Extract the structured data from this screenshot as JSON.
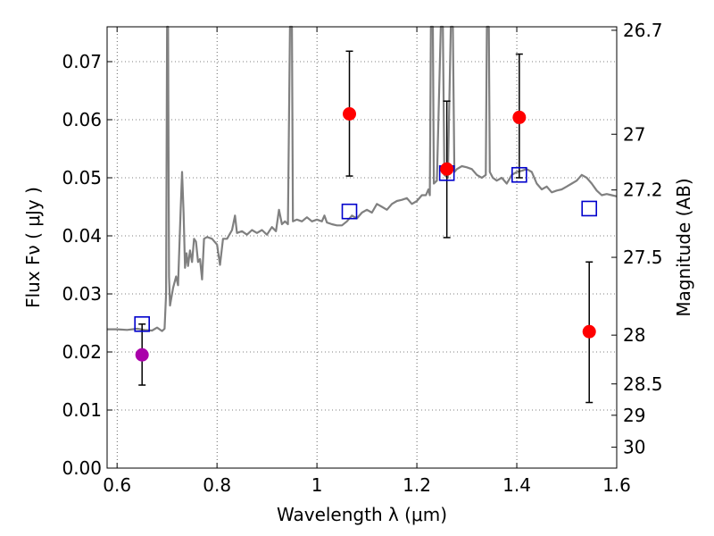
{
  "chart_data": {
    "type": "scatter",
    "xlabel": "Wavelength  λ (μm)",
    "ylabel": "Flux  Fν ( μJy )",
    "ylabel_right": "Magnitude (AB)",
    "xlim": [
      0.58,
      1.6
    ],
    "ylim": [
      0.0,
      0.076
    ],
    "grid": true,
    "x_ticks": [
      0.6,
      0.8,
      1.0,
      1.2,
      1.4,
      1.6
    ],
    "x_tick_labels": [
      "0.6",
      "0.8",
      "1",
      "1.2",
      "1.4",
      "1.6"
    ],
    "y_ticks": [
      0.0,
      0.01,
      0.02,
      0.03,
      0.04,
      0.05,
      0.06,
      0.07
    ],
    "y_tick_labels": [
      "0.00",
      "0.01",
      "0.02",
      "0.03",
      "0.04",
      "0.05",
      "0.06",
      "0.07"
    ],
    "right_ticks": [
      {
        "label": "26.7",
        "flux": 0.0754
      },
      {
        "label": "27",
        "flux": 0.0575
      },
      {
        "label": "27.2",
        "flux": 0.0479
      },
      {
        "label": "27.5",
        "flux": 0.0363
      },
      {
        "label": "28",
        "flux": 0.0229
      },
      {
        "label": "28.5",
        "flux": 0.0145
      },
      {
        "label": "29",
        "flux": 0.0091
      },
      {
        "label": "30",
        "flux": 0.0036
      }
    ],
    "series": [
      {
        "type": "line",
        "color": "#808080",
        "points": [
          [
            0.58,
            0.0239
          ],
          [
            0.6,
            0.0239
          ],
          [
            0.62,
            0.0238
          ],
          [
            0.64,
            0.024
          ],
          [
            0.655,
            0.0238
          ],
          [
            0.67,
            0.0237
          ],
          [
            0.68,
            0.0242
          ],
          [
            0.69,
            0.0236
          ],
          [
            0.695,
            0.024
          ],
          [
            0.698,
            0.03
          ],
          [
            0.7,
            0.076
          ],
          [
            0.702,
            0.076
          ],
          [
            0.704,
            0.033
          ],
          [
            0.706,
            0.028
          ],
          [
            0.712,
            0.031
          ],
          [
            0.718,
            0.033
          ],
          [
            0.722,
            0.0315
          ],
          [
            0.727,
            0.044
          ],
          [
            0.73,
            0.051
          ],
          [
            0.733,
            0.044
          ],
          [
            0.736,
            0.0345
          ],
          [
            0.739,
            0.037
          ],
          [
            0.742,
            0.0348
          ],
          [
            0.746,
            0.0375
          ],
          [
            0.75,
            0.0355
          ],
          [
            0.754,
            0.0395
          ],
          [
            0.758,
            0.039
          ],
          [
            0.762,
            0.0355
          ],
          [
            0.766,
            0.036
          ],
          [
            0.77,
            0.0325
          ],
          [
            0.774,
            0.0395
          ],
          [
            0.78,
            0.0398
          ],
          [
            0.79,
            0.0395
          ],
          [
            0.8,
            0.0385
          ],
          [
            0.806,
            0.035
          ],
          [
            0.812,
            0.0395
          ],
          [
            0.82,
            0.0395
          ],
          [
            0.83,
            0.041
          ],
          [
            0.836,
            0.0435
          ],
          [
            0.84,
            0.0405
          ],
          [
            0.85,
            0.0408
          ],
          [
            0.86,
            0.0402
          ],
          [
            0.87,
            0.041
          ],
          [
            0.88,
            0.0405
          ],
          [
            0.89,
            0.041
          ],
          [
            0.9,
            0.0402
          ],
          [
            0.91,
            0.0415
          ],
          [
            0.918,
            0.0408
          ],
          [
            0.924,
            0.0445
          ],
          [
            0.93,
            0.042
          ],
          [
            0.936,
            0.0425
          ],
          [
            0.942,
            0.042
          ],
          [
            0.946,
            0.076
          ],
          [
            0.95,
            0.076
          ],
          [
            0.952,
            0.0425
          ],
          [
            0.96,
            0.0428
          ],
          [
            0.97,
            0.0425
          ],
          [
            0.98,
            0.0432
          ],
          [
            0.99,
            0.0425
          ],
          [
            1.0,
            0.0428
          ],
          [
            1.01,
            0.0425
          ],
          [
            1.015,
            0.0435
          ],
          [
            1.02,
            0.0423
          ],
          [
            1.03,
            0.042
          ],
          [
            1.04,
            0.0418
          ],
          [
            1.05,
            0.0418
          ],
          [
            1.06,
            0.0425
          ],
          [
            1.07,
            0.0435
          ],
          [
            1.08,
            0.043
          ],
          [
            1.09,
            0.044
          ],
          [
            1.1,
            0.0445
          ],
          [
            1.11,
            0.044
          ],
          [
            1.12,
            0.0455
          ],
          [
            1.13,
            0.045
          ],
          [
            1.14,
            0.0445
          ],
          [
            1.15,
            0.0455
          ],
          [
            1.16,
            0.046
          ],
          [
            1.17,
            0.0462
          ],
          [
            1.18,
            0.0465
          ],
          [
            1.19,
            0.0455
          ],
          [
            1.2,
            0.046
          ],
          [
            1.21,
            0.047
          ],
          [
            1.218,
            0.047
          ],
          [
            1.223,
            0.048
          ],
          [
            1.226,
            0.047
          ],
          [
            1.228,
            0.076
          ],
          [
            1.232,
            0.076
          ],
          [
            1.234,
            0.049
          ],
          [
            1.24,
            0.0495
          ],
          [
            1.248,
            0.076
          ],
          [
            1.252,
            0.076
          ],
          [
            1.255,
            0.0505
          ],
          [
            1.262,
            0.05
          ],
          [
            1.268,
            0.076
          ],
          [
            1.272,
            0.076
          ],
          [
            1.275,
            0.051
          ],
          [
            1.28,
            0.0515
          ],
          [
            1.29,
            0.052
          ],
          [
            1.3,
            0.0518
          ],
          [
            1.31,
            0.0515
          ],
          [
            1.32,
            0.0505
          ],
          [
            1.33,
            0.05
          ],
          [
            1.338,
            0.0505
          ],
          [
            1.34,
            0.076
          ],
          [
            1.344,
            0.076
          ],
          [
            1.346,
            0.051
          ],
          [
            1.352,
            0.05
          ],
          [
            1.36,
            0.0495
          ],
          [
            1.37,
            0.05
          ],
          [
            1.38,
            0.049
          ],
          [
            1.39,
            0.0505
          ],
          [
            1.4,
            0.051
          ],
          [
            1.41,
            0.0512
          ],
          [
            1.42,
            0.0515
          ],
          [
            1.43,
            0.051
          ],
          [
            1.44,
            0.049
          ],
          [
            1.45,
            0.048
          ],
          [
            1.46,
            0.0485
          ],
          [
            1.47,
            0.0475
          ],
          [
            1.48,
            0.0478
          ],
          [
            1.49,
            0.048
          ],
          [
            1.5,
            0.0485
          ],
          [
            1.51,
            0.049
          ],
          [
            1.52,
            0.0495
          ],
          [
            1.53,
            0.0505
          ],
          [
            1.54,
            0.05
          ],
          [
            1.55,
            0.049
          ],
          [
            1.56,
            0.0478
          ],
          [
            1.57,
            0.047
          ],
          [
            1.58,
            0.0472
          ],
          [
            1.59,
            0.047
          ],
          [
            1.6,
            0.0468
          ]
        ]
      },
      {
        "type": "errorbar",
        "color": "#000000",
        "points": [
          {
            "x": 0.65,
            "y": 0.0195,
            "low": 0.0143,
            "high": 0.0248
          },
          {
            "x": 1.065,
            "y": 0.061,
            "low": 0.0503,
            "high": 0.0718
          },
          {
            "x": 1.26,
            "y": 0.0515,
            "low": 0.0397,
            "high": 0.0632
          },
          {
            "x": 1.405,
            "y": 0.0604,
            "low": 0.05,
            "high": 0.0713
          },
          {
            "x": 1.545,
            "y": 0.0235,
            "low": 0.0113,
            "high": 0.0355
          }
        ]
      },
      {
        "type": "scatter",
        "marker": "circle",
        "points": [
          {
            "x": 0.65,
            "y": 0.0195,
            "color": "#aa00aa"
          },
          {
            "x": 1.065,
            "y": 0.061,
            "color": "#ff0000"
          },
          {
            "x": 1.26,
            "y": 0.0515,
            "color": "#ff0000"
          },
          {
            "x": 1.405,
            "y": 0.0604,
            "color": "#ff0000"
          },
          {
            "x": 1.545,
            "y": 0.0235,
            "color": "#ff0000"
          }
        ]
      },
      {
        "type": "scatter",
        "marker": "open-square",
        "color": "#0000cc",
        "points": [
          {
            "x": 0.65,
            "y": 0.0248
          },
          {
            "x": 1.065,
            "y": 0.0442
          },
          {
            "x": 1.26,
            "y": 0.0508
          },
          {
            "x": 1.405,
            "y": 0.0505
          },
          {
            "x": 1.545,
            "y": 0.0447
          }
        ]
      }
    ]
  }
}
